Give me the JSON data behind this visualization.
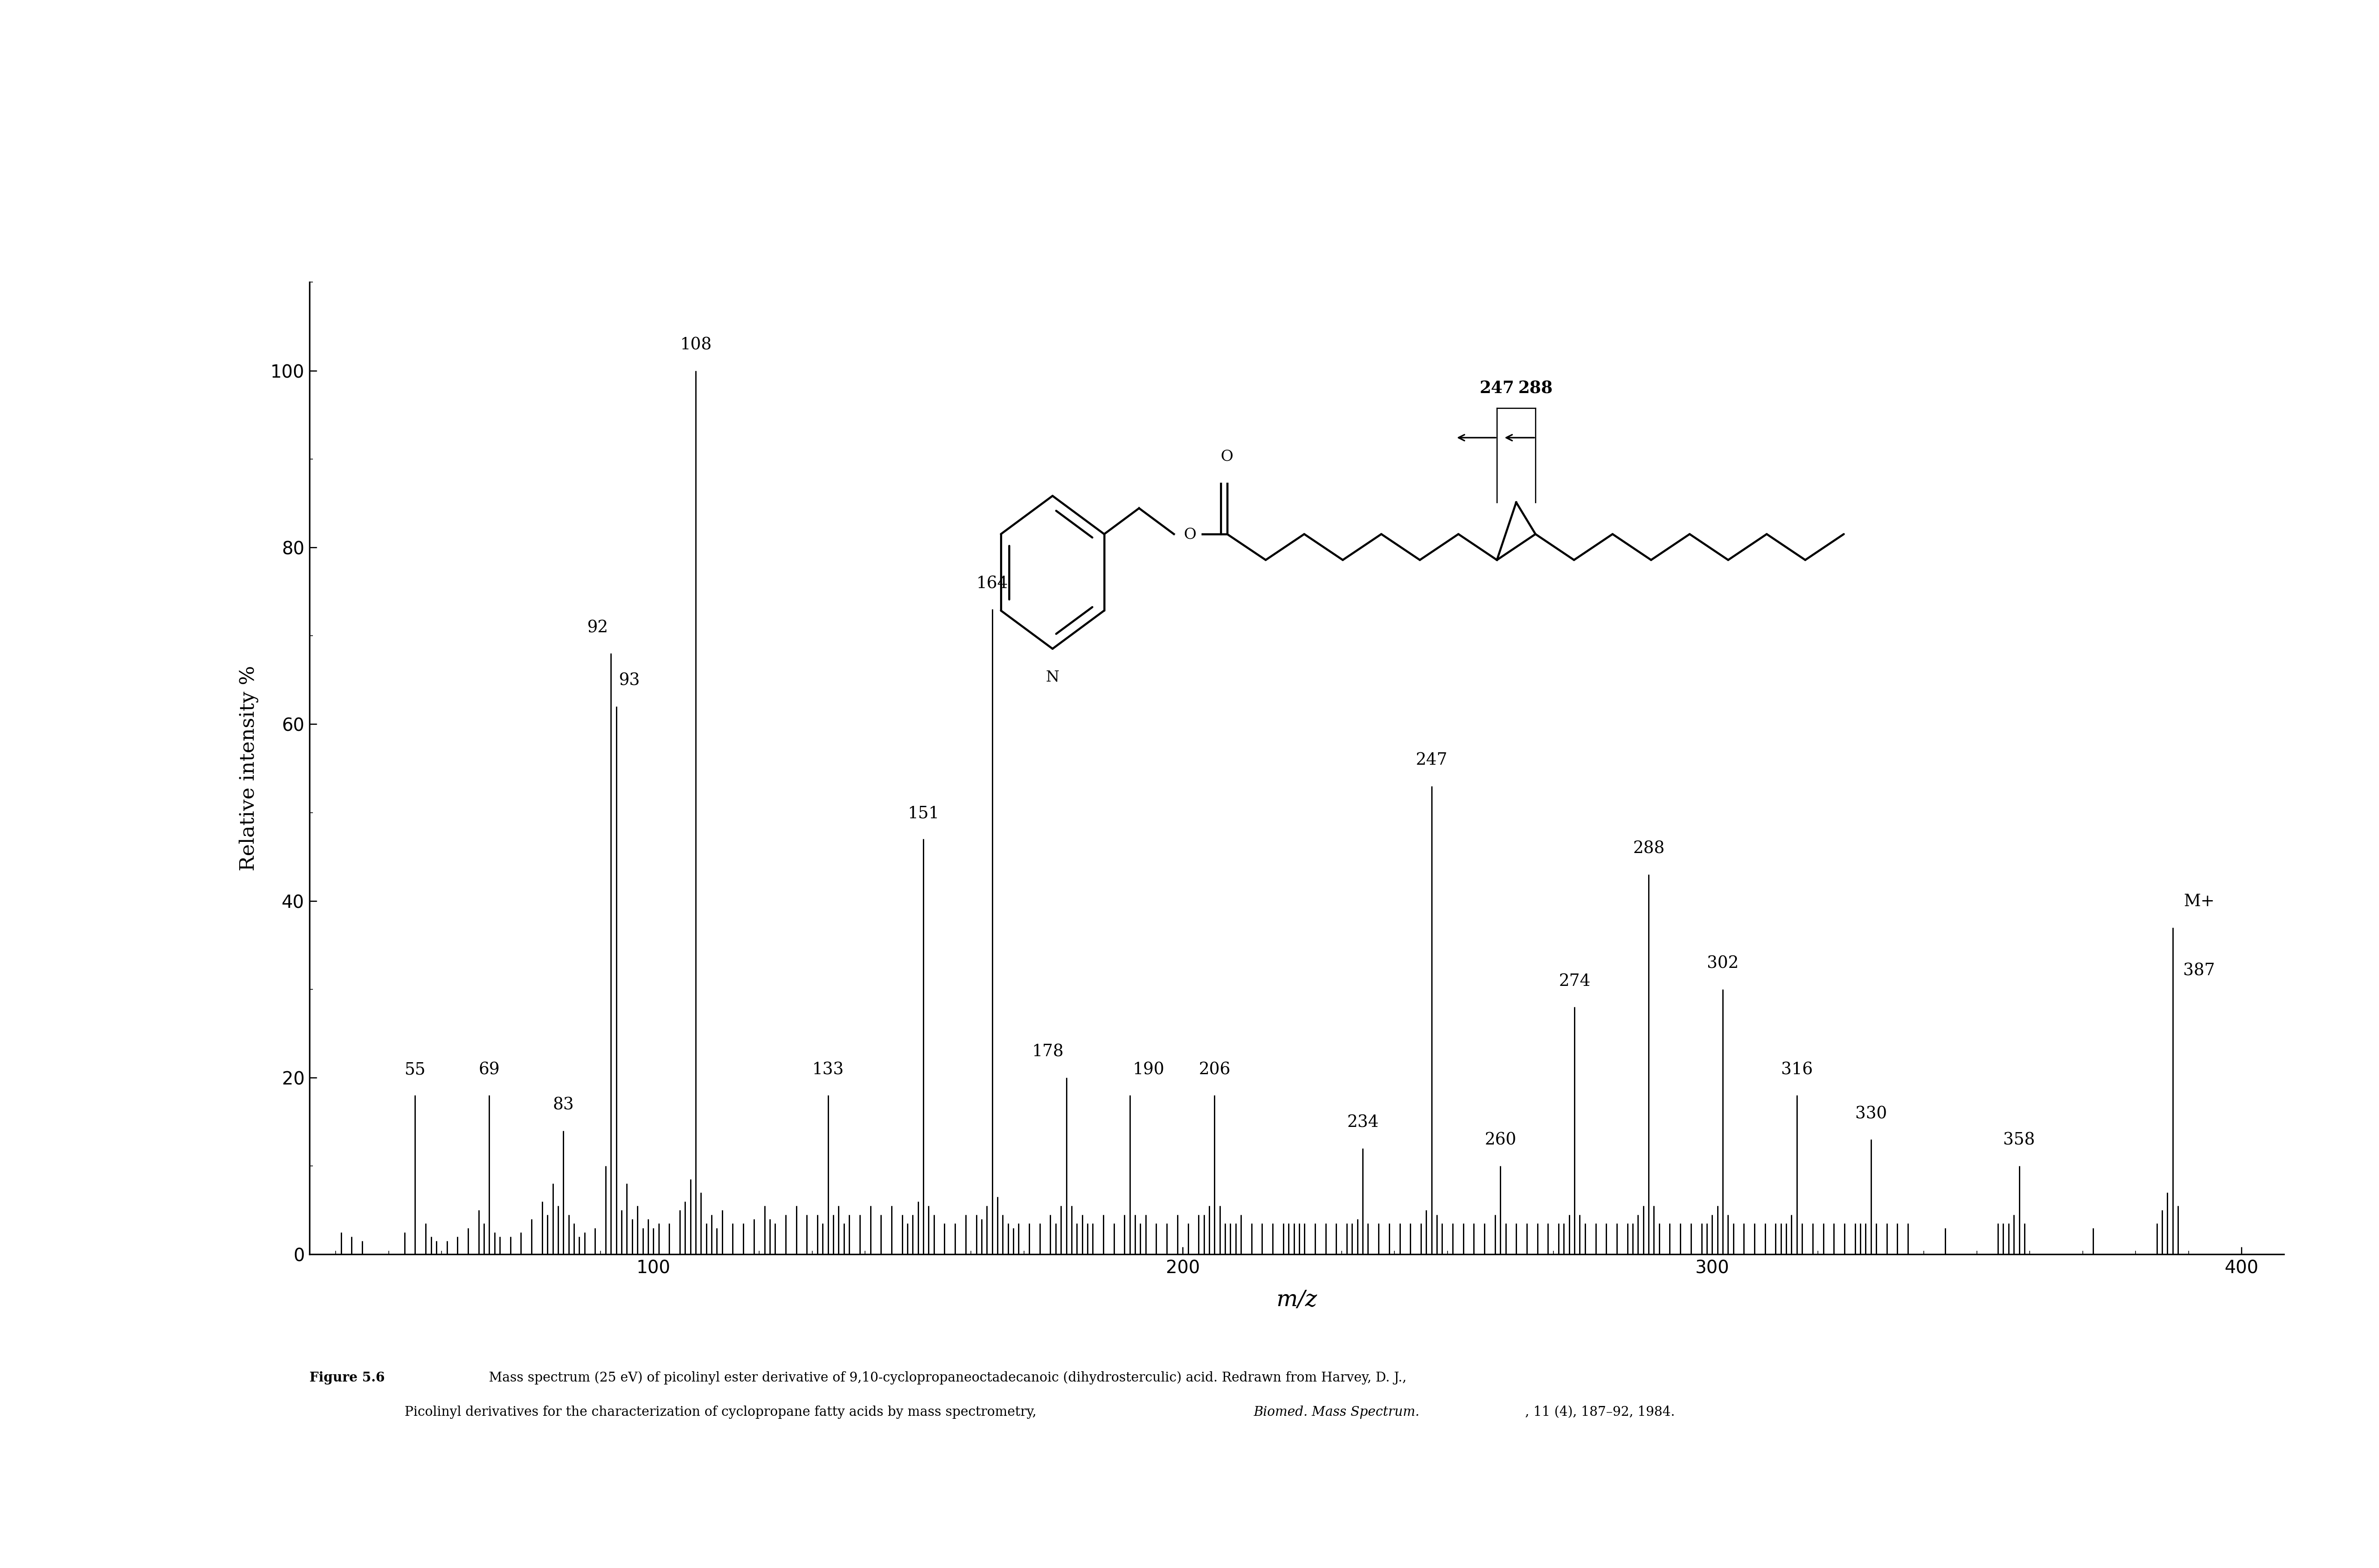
{
  "peaks": [
    {
      "mz": 41,
      "intensity": 2.5
    },
    {
      "mz": 43,
      "intensity": 2.0
    },
    {
      "mz": 45,
      "intensity": 1.5
    },
    {
      "mz": 53,
      "intensity": 2.5
    },
    {
      "mz": 55,
      "intensity": 18
    },
    {
      "mz": 57,
      "intensity": 3.5
    },
    {
      "mz": 58,
      "intensity": 2.0
    },
    {
      "mz": 59,
      "intensity": 1.5
    },
    {
      "mz": 61,
      "intensity": 1.5
    },
    {
      "mz": 63,
      "intensity": 2.0
    },
    {
      "mz": 65,
      "intensity": 3.0
    },
    {
      "mz": 67,
      "intensity": 5.0
    },
    {
      "mz": 68,
      "intensity": 3.5
    },
    {
      "mz": 69,
      "intensity": 18
    },
    {
      "mz": 70,
      "intensity": 2.5
    },
    {
      "mz": 71,
      "intensity": 2.0
    },
    {
      "mz": 73,
      "intensity": 2.0
    },
    {
      "mz": 75,
      "intensity": 2.5
    },
    {
      "mz": 77,
      "intensity": 4.0
    },
    {
      "mz": 79,
      "intensity": 6.0
    },
    {
      "mz": 80,
      "intensity": 4.5
    },
    {
      "mz": 81,
      "intensity": 8.0
    },
    {
      "mz": 82,
      "intensity": 5.5
    },
    {
      "mz": 83,
      "intensity": 14
    },
    {
      "mz": 84,
      "intensity": 4.5
    },
    {
      "mz": 85,
      "intensity": 3.5
    },
    {
      "mz": 86,
      "intensity": 2.0
    },
    {
      "mz": 87,
      "intensity": 2.5
    },
    {
      "mz": 89,
      "intensity": 3.0
    },
    {
      "mz": 91,
      "intensity": 10.0
    },
    {
      "mz": 92,
      "intensity": 68
    },
    {
      "mz": 93,
      "intensity": 62
    },
    {
      "mz": 94,
      "intensity": 5.0
    },
    {
      "mz": 95,
      "intensity": 8.0
    },
    {
      "mz": 96,
      "intensity": 4.0
    },
    {
      "mz": 97,
      "intensity": 5.5
    },
    {
      "mz": 98,
      "intensity": 3.0
    },
    {
      "mz": 99,
      "intensity": 4.0
    },
    {
      "mz": 100,
      "intensity": 3.0
    },
    {
      "mz": 101,
      "intensity": 3.5
    },
    {
      "mz": 103,
      "intensity": 3.5
    },
    {
      "mz": 105,
      "intensity": 5.0
    },
    {
      "mz": 106,
      "intensity": 6.0
    },
    {
      "mz": 107,
      "intensity": 8.5
    },
    {
      "mz": 108,
      "intensity": 100
    },
    {
      "mz": 109,
      "intensity": 7.0
    },
    {
      "mz": 110,
      "intensity": 3.5
    },
    {
      "mz": 111,
      "intensity": 4.5
    },
    {
      "mz": 112,
      "intensity": 3.0
    },
    {
      "mz": 113,
      "intensity": 5.0
    },
    {
      "mz": 115,
      "intensity": 3.5
    },
    {
      "mz": 117,
      "intensity": 3.5
    },
    {
      "mz": 119,
      "intensity": 4.0
    },
    {
      "mz": 121,
      "intensity": 5.5
    },
    {
      "mz": 122,
      "intensity": 4.0
    },
    {
      "mz": 123,
      "intensity": 3.5
    },
    {
      "mz": 125,
      "intensity": 4.5
    },
    {
      "mz": 127,
      "intensity": 5.5
    },
    {
      "mz": 129,
      "intensity": 4.5
    },
    {
      "mz": 131,
      "intensity": 4.5
    },
    {
      "mz": 132,
      "intensity": 3.5
    },
    {
      "mz": 133,
      "intensity": 18
    },
    {
      "mz": 134,
      "intensity": 4.5
    },
    {
      "mz": 135,
      "intensity": 5.5
    },
    {
      "mz": 136,
      "intensity": 3.5
    },
    {
      "mz": 137,
      "intensity": 4.5
    },
    {
      "mz": 139,
      "intensity": 4.5
    },
    {
      "mz": 141,
      "intensity": 5.5
    },
    {
      "mz": 143,
      "intensity": 4.5
    },
    {
      "mz": 145,
      "intensity": 5.5
    },
    {
      "mz": 147,
      "intensity": 4.5
    },
    {
      "mz": 148,
      "intensity": 3.5
    },
    {
      "mz": 149,
      "intensity": 4.5
    },
    {
      "mz": 150,
      "intensity": 6.0
    },
    {
      "mz": 151,
      "intensity": 47
    },
    {
      "mz": 152,
      "intensity": 5.5
    },
    {
      "mz": 153,
      "intensity": 4.5
    },
    {
      "mz": 155,
      "intensity": 3.5
    },
    {
      "mz": 157,
      "intensity": 3.5
    },
    {
      "mz": 159,
      "intensity": 4.5
    },
    {
      "mz": 161,
      "intensity": 4.5
    },
    {
      "mz": 162,
      "intensity": 4.0
    },
    {
      "mz": 163,
      "intensity": 5.5
    },
    {
      "mz": 164,
      "intensity": 73
    },
    {
      "mz": 165,
      "intensity": 6.5
    },
    {
      "mz": 166,
      "intensity": 4.5
    },
    {
      "mz": 167,
      "intensity": 3.5
    },
    {
      "mz": 168,
      "intensity": 3.0
    },
    {
      "mz": 169,
      "intensity": 3.5
    },
    {
      "mz": 171,
      "intensity": 3.5
    },
    {
      "mz": 173,
      "intensity": 3.5
    },
    {
      "mz": 175,
      "intensity": 4.5
    },
    {
      "mz": 176,
      "intensity": 3.5
    },
    {
      "mz": 177,
      "intensity": 5.5
    },
    {
      "mz": 178,
      "intensity": 20
    },
    {
      "mz": 179,
      "intensity": 5.5
    },
    {
      "mz": 180,
      "intensity": 3.5
    },
    {
      "mz": 181,
      "intensity": 4.5
    },
    {
      "mz": 182,
      "intensity": 3.5
    },
    {
      "mz": 183,
      "intensity": 3.5
    },
    {
      "mz": 185,
      "intensity": 4.5
    },
    {
      "mz": 187,
      "intensity": 3.5
    },
    {
      "mz": 189,
      "intensity": 4.5
    },
    {
      "mz": 190,
      "intensity": 18
    },
    {
      "mz": 191,
      "intensity": 4.5
    },
    {
      "mz": 192,
      "intensity": 3.5
    },
    {
      "mz": 193,
      "intensity": 4.5
    },
    {
      "mz": 195,
      "intensity": 3.5
    },
    {
      "mz": 197,
      "intensity": 3.5
    },
    {
      "mz": 199,
      "intensity": 4.5
    },
    {
      "mz": 201,
      "intensity": 3.5
    },
    {
      "mz": 203,
      "intensity": 4.5
    },
    {
      "mz": 204,
      "intensity": 4.5
    },
    {
      "mz": 205,
      "intensity": 5.5
    },
    {
      "mz": 206,
      "intensity": 18
    },
    {
      "mz": 207,
      "intensity": 5.5
    },
    {
      "mz": 208,
      "intensity": 3.5
    },
    {
      "mz": 209,
      "intensity": 3.5
    },
    {
      "mz": 210,
      "intensity": 3.5
    },
    {
      "mz": 211,
      "intensity": 4.5
    },
    {
      "mz": 213,
      "intensity": 3.5
    },
    {
      "mz": 215,
      "intensity": 3.5
    },
    {
      "mz": 217,
      "intensity": 3.5
    },
    {
      "mz": 219,
      "intensity": 3.5
    },
    {
      "mz": 220,
      "intensity": 3.5
    },
    {
      "mz": 221,
      "intensity": 3.5
    },
    {
      "mz": 222,
      "intensity": 3.5
    },
    {
      "mz": 223,
      "intensity": 3.5
    },
    {
      "mz": 225,
      "intensity": 3.5
    },
    {
      "mz": 227,
      "intensity": 3.5
    },
    {
      "mz": 229,
      "intensity": 3.5
    },
    {
      "mz": 231,
      "intensity": 3.5
    },
    {
      "mz": 232,
      "intensity": 3.5
    },
    {
      "mz": 233,
      "intensity": 4.0
    },
    {
      "mz": 234,
      "intensity": 12
    },
    {
      "mz": 235,
      "intensity": 3.5
    },
    {
      "mz": 237,
      "intensity": 3.5
    },
    {
      "mz": 239,
      "intensity": 3.5
    },
    {
      "mz": 241,
      "intensity": 3.5
    },
    {
      "mz": 243,
      "intensity": 3.5
    },
    {
      "mz": 245,
      "intensity": 3.5
    },
    {
      "mz": 246,
      "intensity": 5.0
    },
    {
      "mz": 247,
      "intensity": 53
    },
    {
      "mz": 248,
      "intensity": 4.5
    },
    {
      "mz": 249,
      "intensity": 3.5
    },
    {
      "mz": 251,
      "intensity": 3.5
    },
    {
      "mz": 253,
      "intensity": 3.5
    },
    {
      "mz": 255,
      "intensity": 3.5
    },
    {
      "mz": 257,
      "intensity": 3.5
    },
    {
      "mz": 259,
      "intensity": 4.5
    },
    {
      "mz": 260,
      "intensity": 10
    },
    {
      "mz": 261,
      "intensity": 3.5
    },
    {
      "mz": 263,
      "intensity": 3.5
    },
    {
      "mz": 265,
      "intensity": 3.5
    },
    {
      "mz": 267,
      "intensity": 3.5
    },
    {
      "mz": 269,
      "intensity": 3.5
    },
    {
      "mz": 271,
      "intensity": 3.5
    },
    {
      "mz": 272,
      "intensity": 3.5
    },
    {
      "mz": 273,
      "intensity": 4.5
    },
    {
      "mz": 274,
      "intensity": 28
    },
    {
      "mz": 275,
      "intensity": 4.5
    },
    {
      "mz": 276,
      "intensity": 3.5
    },
    {
      "mz": 278,
      "intensity": 3.5
    },
    {
      "mz": 280,
      "intensity": 3.5
    },
    {
      "mz": 282,
      "intensity": 3.5
    },
    {
      "mz": 284,
      "intensity": 3.5
    },
    {
      "mz": 285,
      "intensity": 3.5
    },
    {
      "mz": 286,
      "intensity": 4.5
    },
    {
      "mz": 287,
      "intensity": 5.5
    },
    {
      "mz": 288,
      "intensity": 43
    },
    {
      "mz": 289,
      "intensity": 5.5
    },
    {
      "mz": 290,
      "intensity": 3.5
    },
    {
      "mz": 292,
      "intensity": 3.5
    },
    {
      "mz": 294,
      "intensity": 3.5
    },
    {
      "mz": 296,
      "intensity": 3.5
    },
    {
      "mz": 298,
      "intensity": 3.5
    },
    {
      "mz": 299,
      "intensity": 3.5
    },
    {
      "mz": 300,
      "intensity": 4.5
    },
    {
      "mz": 301,
      "intensity": 5.5
    },
    {
      "mz": 302,
      "intensity": 30
    },
    {
      "mz": 303,
      "intensity": 4.5
    },
    {
      "mz": 304,
      "intensity": 3.5
    },
    {
      "mz": 306,
      "intensity": 3.5
    },
    {
      "mz": 308,
      "intensity": 3.5
    },
    {
      "mz": 310,
      "intensity": 3.5
    },
    {
      "mz": 312,
      "intensity": 3.5
    },
    {
      "mz": 313,
      "intensity": 3.5
    },
    {
      "mz": 314,
      "intensity": 3.5
    },
    {
      "mz": 315,
      "intensity": 4.5
    },
    {
      "mz": 316,
      "intensity": 18
    },
    {
      "mz": 317,
      "intensity": 3.5
    },
    {
      "mz": 319,
      "intensity": 3.5
    },
    {
      "mz": 321,
      "intensity": 3.5
    },
    {
      "mz": 323,
      "intensity": 3.5
    },
    {
      "mz": 325,
      "intensity": 3.5
    },
    {
      "mz": 327,
      "intensity": 3.5
    },
    {
      "mz": 328,
      "intensity": 3.5
    },
    {
      "mz": 329,
      "intensity": 3.5
    },
    {
      "mz": 330,
      "intensity": 13
    },
    {
      "mz": 331,
      "intensity": 3.5
    },
    {
      "mz": 333,
      "intensity": 3.5
    },
    {
      "mz": 335,
      "intensity": 3.5
    },
    {
      "mz": 337,
      "intensity": 3.5
    },
    {
      "mz": 344,
      "intensity": 3.0
    },
    {
      "mz": 354,
      "intensity": 3.5
    },
    {
      "mz": 355,
      "intensity": 3.5
    },
    {
      "mz": 356,
      "intensity": 3.5
    },
    {
      "mz": 357,
      "intensity": 4.5
    },
    {
      "mz": 358,
      "intensity": 10
    },
    {
      "mz": 359,
      "intensity": 3.5
    },
    {
      "mz": 372,
      "intensity": 3.0
    },
    {
      "mz": 384,
      "intensity": 3.5
    },
    {
      "mz": 385,
      "intensity": 5.0
    },
    {
      "mz": 386,
      "intensity": 7.0
    },
    {
      "mz": 387,
      "intensity": 37
    },
    {
      "mz": 388,
      "intensity": 5.5
    }
  ],
  "xlim": [
    35,
    408
  ],
  "ylim": [
    0,
    110
  ],
  "xticks": [
    100,
    200,
    300,
    400
  ],
  "yticks": [
    0,
    20,
    40,
    60,
    80,
    100
  ],
  "xlabel": "m/z",
  "ylabel": "Relative intensity %",
  "bar_color": "#000000",
  "background_color": "#ffffff",
  "label_fontsize": 28,
  "axis_label_fontsize": 34,
  "xlabel_fontsize": 38,
  "tick_fontsize": 30,
  "caption_fontsize": 22,
  "struct_label_fontsize": 26,
  "struct_arrow_label_fontsize": 28
}
